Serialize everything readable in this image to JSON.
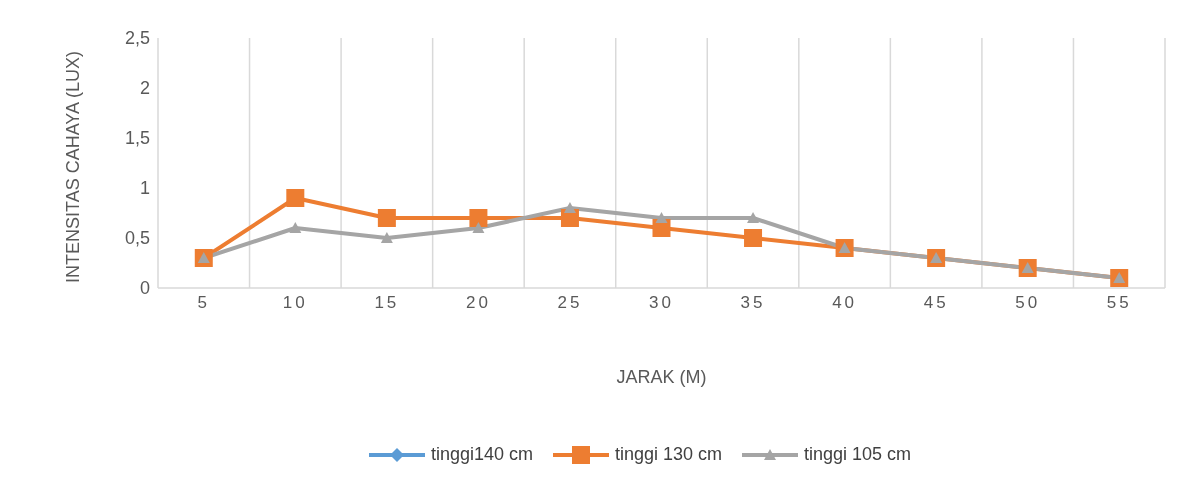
{
  "chart_data": {
    "type": "line",
    "xlabel": "JARAK (M)",
    "ylabel": "INTENSITAS CAHAYA (LUX)",
    "categories": [
      "5",
      "10",
      "15",
      "20",
      "25",
      "30",
      "35",
      "40",
      "45",
      "50",
      "55"
    ],
    "series": [
      {
        "name": "tinggi140 cm",
        "color": "#5b9bd5",
        "marker": "diamond",
        "values": [
          null,
          null,
          null,
          null,
          null,
          null,
          null,
          null,
          null,
          null,
          null
        ]
      },
      {
        "name": "tinggi 130 cm",
        "color": "#ed7d31",
        "marker": "square",
        "values": [
          0.3,
          0.9,
          0.7,
          0.7,
          0.7,
          0.6,
          0.5,
          0.4,
          0.3,
          0.2,
          0.1
        ]
      },
      {
        "name": "tinggi 105 cm",
        "color": "#a5a5a5",
        "marker": "triangle",
        "values": [
          0.3,
          0.6,
          0.5,
          0.6,
          0.8,
          0.7,
          0.7,
          0.4,
          0.3,
          0.2,
          0.1
        ]
      }
    ],
    "ylim": [
      0,
      2.5
    ],
    "yticks": [
      0,
      {
        "value": 0.5,
        "label": "0,5"
      },
      1,
      {
        "value": 1.5,
        "label": "1,5"
      },
      2,
      {
        "value": 2.5,
        "label": "2,5"
      }
    ],
    "grid": "x",
    "legend": "bottom",
    "line_style": "solid"
  }
}
